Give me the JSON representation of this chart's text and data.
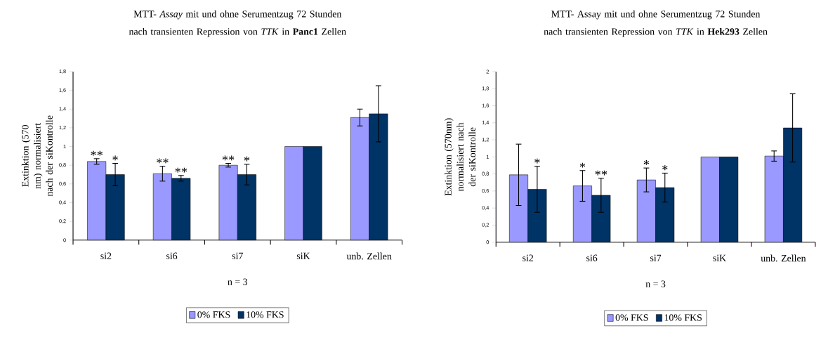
{
  "chart_data": [
    {
      "type": "bar",
      "title": "MTT- *Assay* mit und ohne Serumentzug 72 Stunden nach transienten Repression von *TTK* in **Panc1** Zellen",
      "ylabel": "Extinktion (570 nm) normalisiert nach der siKontrolle",
      "categories": [
        "si2",
        "si6",
        "si7",
        "siK",
        "unb. Zellen"
      ],
      "series": [
        {
          "name": "0% FKS",
          "color": "#9999ff",
          "values": [
            0.84,
            0.71,
            0.8,
            1.0,
            1.31
          ],
          "errors": [
            0.03,
            0.08,
            0.02,
            null,
            0.09
          ]
        },
        {
          "name": "10% FKS",
          "color": "#003366",
          "values": [
            0.7,
            0.66,
            0.7,
            1.0,
            1.35
          ],
          "errors": [
            0.12,
            0.03,
            0.11,
            null,
            0.3
          ]
        }
      ],
      "ylim": [
        0,
        1.8
      ],
      "yticks": [
        0,
        {
          "value": 0.2,
          "label": "0,2"
        },
        {
          "value": 0.4,
          "label": "0,4"
        },
        {
          "value": 0.6,
          "label": "0,6"
        },
        {
          "value": 0.8,
          "label": "0,8"
        },
        1,
        {
          "value": 1.2,
          "label": "1,2"
        },
        {
          "value": 1.4,
          "label": "1,4"
        },
        {
          "value": 1.6,
          "label": "1,6"
        },
        {
          "value": 1.8,
          "label": "1,8"
        }
      ],
      "grid": false,
      "legend": "bottom",
      "annotations": [
        "n = 3",
        {
          "text": "**",
          "x": "si2",
          "y": 0.84
        },
        {
          "text": "*",
          "x": "si2",
          "y": 0.7
        },
        {
          "text": "**",
          "x": "si6",
          "y": 0.71
        },
        {
          "text": "**",
          "x": "si6",
          "y": 0.66
        },
        {
          "text": "**",
          "x": "si7",
          "y": 0.8
        },
        {
          "text": "*",
          "x": "si7",
          "y": 0.7
        }
      ]
    },
    {
      "type": "bar",
      "title": "MTT- Assay mit und ohne Serumentzug 72 Stunden nach transienten Repression von *TTK* in **Hek293** Zellen",
      "ylabel": "Extinktion (570nm) normalisiert nach der siKontrolle",
      "categories": [
        "si2",
        "si6",
        "si7",
        "siK",
        "unb. Zellen"
      ],
      "series": [
        {
          "name": "0% FKS",
          "color": "#9999ff",
          "values": [
            0.79,
            0.66,
            0.73,
            1.0,
            1.01
          ],
          "errors": [
            0.36,
            0.18,
            0.14,
            null,
            0.06
          ]
        },
        {
          "name": "10% FKS",
          "color": "#003366",
          "values": [
            0.62,
            0.55,
            0.64,
            1.0,
            1.34
          ],
          "errors": [
            0.27,
            0.2,
            0.17,
            null,
            0.4
          ]
        }
      ],
      "ylim": [
        0,
        2
      ],
      "yticks": [
        0,
        {
          "value": 0.2,
          "label": "0,2"
        },
        {
          "value": 0.4,
          "label": "0,4"
        },
        {
          "value": 0.6,
          "label": "0,6"
        },
        {
          "value": 0.8,
          "label": "0,8"
        },
        1,
        {
          "value": 1.2,
          "label": "1,2"
        },
        {
          "value": 1.4,
          "label": "1,4"
        },
        {
          "value": 1.6,
          "label": "1,6"
        },
        {
          "value": 1.8,
          "label": "1,8"
        },
        2
      ],
      "grid": false,
      "legend": "bottom",
      "annotations": [
        "n = 3",
        {
          "text": "*",
          "x": "si2",
          "y": 0.62
        },
        {
          "text": "*",
          "x": "si6",
          "y": 0.66
        },
        {
          "text": "**",
          "x": "si6",
          "y": 0.55
        },
        {
          "text": "*",
          "x": "si7",
          "y": 0.73
        },
        {
          "text": "*",
          "x": "si7",
          "y": 0.64
        }
      ]
    }
  ]
}
